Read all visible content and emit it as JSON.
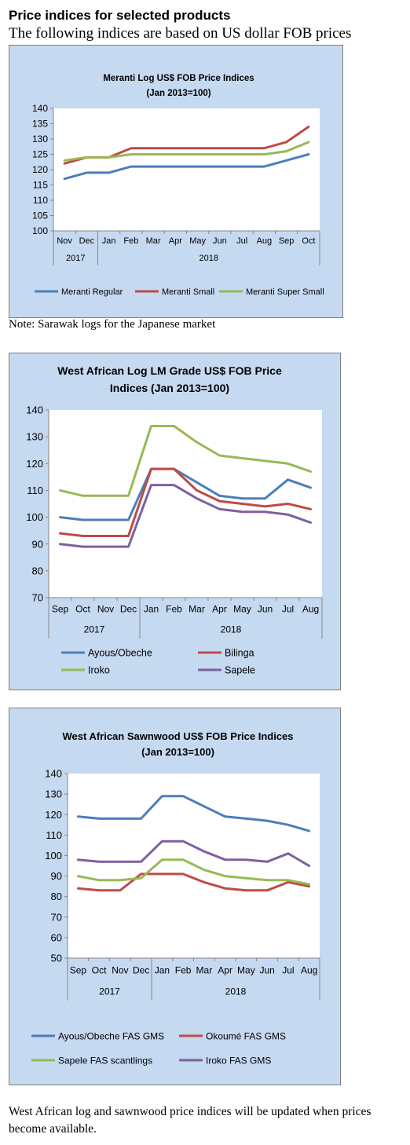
{
  "heading": "Price indices for selected products",
  "subheading": "The following indices are based on US dollar FOB prices",
  "note": "Note: Sarawak logs for the Japanese market",
  "footer": "West African log and sawnwood price indices will be updated when prices become available.",
  "charts": [
    {
      "type": "line",
      "title_lines": [
        "Meranti Log US$ FOB Price Indices",
        "(Jan 2013=100)"
      ],
      "categories": [
        "Nov",
        "Dec",
        "Jan",
        "Feb",
        "Mar",
        "Apr",
        "May",
        "Jun",
        "Jul",
        "Aug",
        "Sep",
        "Oct"
      ],
      "year_groups": [
        {
          "label": "2017",
          "count": 2
        },
        {
          "label": "2018",
          "count": 10
        }
      ],
      "ylim": [
        100,
        140
      ],
      "yticks": [
        100,
        105,
        110,
        115,
        120,
        125,
        130,
        135,
        140
      ],
      "grid": false,
      "legend_position": "bottom",
      "series": [
        {
          "name": "Meranti Regular",
          "color": "#4a7ebb",
          "values": [
            117,
            119,
            119,
            121,
            121,
            121,
            121,
            121,
            121,
            121,
            123,
            125
          ]
        },
        {
          "name": "Meranti Small",
          "color": "#be4b48",
          "values": [
            122,
            124,
            124,
            127,
            127,
            127,
            127,
            127,
            127,
            127,
            129,
            134
          ]
        },
        {
          "name": "Meranti Super Small",
          "color": "#98b954",
          "values": [
            123,
            124,
            124,
            125,
            125,
            125,
            125,
            125,
            125,
            125,
            126,
            129
          ]
        }
      ]
    },
    {
      "type": "line",
      "title_lines": [
        "West African Log LM Grade US$ FOB Price",
        "Indices (Jan 2013=100)"
      ],
      "categories": [
        "Sep",
        "Oct",
        "Nov",
        "Dec",
        "Jan",
        "Feb",
        "Mar",
        "Apr",
        "May",
        "Jun",
        "Jul",
        "Aug"
      ],
      "year_groups": [
        {
          "label": "2017",
          "count": 4
        },
        {
          "label": "2018",
          "count": 8
        }
      ],
      "ylim": [
        70,
        140
      ],
      "yticks": [
        70,
        80,
        90,
        100,
        110,
        120,
        130,
        140
      ],
      "grid": false,
      "legend_position": "bottom",
      "series": [
        {
          "name": "Ayous/Obeche",
          "color": "#4a7ebb",
          "values": [
            100,
            99,
            99,
            99,
            118,
            118,
            113,
            108,
            107,
            107,
            114,
            111
          ]
        },
        {
          "name": "Bilinga",
          "color": "#be4b48",
          "values": [
            94,
            93,
            93,
            93,
            118,
            118,
            110,
            106,
            105,
            104,
            105,
            103
          ]
        },
        {
          "name": "Iroko",
          "color": "#98b954",
          "values": [
            110,
            108,
            108,
            108,
            134,
            134,
            128,
            123,
            122,
            121,
            120,
            117
          ]
        },
        {
          "name": "Sapele",
          "color": "#7d60a0",
          "values": [
            90,
            89,
            89,
            89,
            112,
            112,
            107,
            103,
            102,
            102,
            101,
            98
          ]
        }
      ]
    },
    {
      "type": "line",
      "title_lines": [
        "West African Sawnwood US$ FOB Price Indices",
        "(Jan 2013=100)"
      ],
      "categories": [
        "Sep",
        "Oct",
        "Nov",
        "Dec",
        "Jan",
        "Feb",
        "Mar",
        "Apr",
        "May",
        "Jun",
        "Jul",
        "Aug"
      ],
      "year_groups": [
        {
          "label": "2017",
          "count": 4
        },
        {
          "label": "2018",
          "count": 8
        }
      ],
      "ylim": [
        50,
        140
      ],
      "yticks": [
        50,
        60,
        70,
        80,
        90,
        100,
        110,
        120,
        130,
        140
      ],
      "grid": false,
      "legend_position": "bottom",
      "series": [
        {
          "name": "Ayous/Obeche  FAS GMS",
          "color": "#4a7ebb",
          "values": [
            119,
            118,
            118,
            118,
            129,
            129,
            124,
            119,
            118,
            117,
            115,
            112
          ]
        },
        {
          "name": "Okoumé  FAS GMS",
          "color": "#be4b48",
          "values": [
            84,
            83,
            83,
            91,
            91,
            91,
            87,
            84,
            83,
            83,
            87,
            85
          ]
        },
        {
          "name": "Sapele FAS scantlings",
          "color": "#98b954",
          "values": [
            90,
            88,
            88,
            89,
            98,
            98,
            93,
            90,
            89,
            88,
            88,
            86
          ]
        },
        {
          "name": "Iroko FAS GMS",
          "color": "#7d60a0",
          "values": [
            98,
            97,
            97,
            97,
            107,
            107,
            102,
            98,
            98,
            97,
            101,
            95
          ]
        }
      ]
    }
  ]
}
